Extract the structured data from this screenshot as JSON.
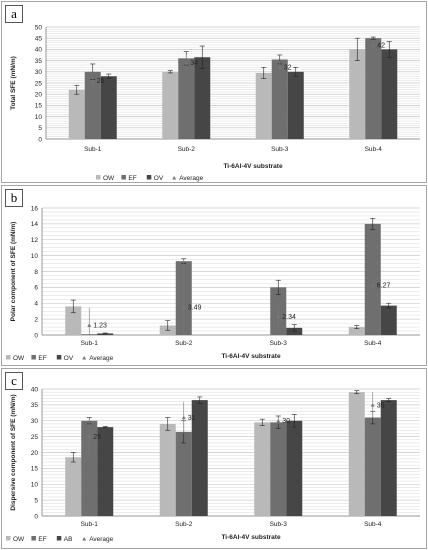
{
  "chart_data": [
    {
      "type": "bar",
      "panel_label": "a",
      "categories": [
        "Sub-1",
        "Sub-2",
        "Sub-3",
        "Sub-4"
      ],
      "series": [
        {
          "name": "OW",
          "color": "#b9b9b9",
          "values": [
            22,
            30,
            29.5,
            40
          ],
          "errors": [
            2,
            0.5,
            2.5,
            5
          ]
        },
        {
          "name": "EF",
          "color": "#6f6f6f",
          "values": [
            30,
            36,
            35.5,
            45
          ],
          "errors": [
            3.5,
            3,
            2,
            0.5
          ]
        },
        {
          "name": "OV",
          "color": "#464646",
          "values": [
            28,
            36.5,
            30,
            40
          ],
          "errors": [
            1,
            5,
            2,
            3.5
          ]
        },
        {
          "name": "Average",
          "type": "marker",
          "values": [
            26,
            34,
            32,
            42
          ],
          "errors": [
            4,
            3.5,
            3,
            2.5
          ]
        }
      ],
      "average_labels": [
        "26",
        "34",
        "32",
        "42"
      ],
      "ylabel": "Total SFE  (mN/m)",
      "xlabel": "Ti-6Al-4V  substrate",
      "ylim": [
        0,
        50
      ],
      "yticks": [
        0,
        5,
        10,
        15,
        20,
        25,
        30,
        35,
        40,
        45,
        50
      ],
      "grid": true,
      "legend": "bottom"
    },
    {
      "type": "bar",
      "panel_label": "b",
      "categories": [
        "Sub-1",
        "Sub-2",
        "Sub-3",
        "Sub-4"
      ],
      "series": [
        {
          "name": "OW",
          "color": "#b9b9b9",
          "values": [
            3.6,
            1.2,
            0,
            1
          ],
          "errors": [
            0.8,
            0.6,
            0,
            0.2
          ]
        },
        {
          "name": "EF",
          "color": "#6f6f6f",
          "values": [
            0.1,
            9.3,
            6,
            14
          ],
          "errors": [
            0,
            0.3,
            0.9,
            0.7
          ]
        },
        {
          "name": "OV",
          "color": "#464646",
          "values": [
            0.2,
            0,
            0.9,
            3.7
          ],
          "errors": [
            0.05,
            0,
            0.4,
            0.3
          ]
        },
        {
          "name": "Average",
          "type": "marker",
          "values": [
            1.23,
            3.49,
            2.34,
            6.27
          ],
          "errors": [
            2.2,
            6,
            1.5,
            0.3
          ]
        }
      ],
      "average_labels": [
        "1.23",
        "3.49",
        "2.34",
        "6.27"
      ],
      "ylabel": "Polar component of SFE  (mN/m)",
      "xlabel": "Ti-6Al-4V substrate",
      "ylim": [
        0,
        16
      ],
      "yticks": [
        0,
        2,
        4,
        6,
        8,
        10,
        12,
        14,
        16
      ],
      "grid": true,
      "legend": "bottom-left"
    },
    {
      "type": "bar",
      "panel_label": "c",
      "categories": [
        "Sub-1",
        "Sub-2",
        "Sub-3",
        "Sub-4"
      ],
      "series": [
        {
          "name": "OW",
          "color": "#b9b9b9",
          "values": [
            18.5,
            29,
            29.5,
            39
          ],
          "errors": [
            1.5,
            2,
            1,
            0.5
          ]
        },
        {
          "name": "EF",
          "color": "#6f6f6f",
          "values": [
            30,
            26.5,
            29.5,
            31
          ],
          "errors": [
            1,
            3.5,
            2,
            2
          ]
        },
        {
          "name": "AB",
          "color": "#464646",
          "values": [
            28,
            36.5,
            30,
            36.5
          ],
          "errors": [
            0.2,
            1,
            2,
            0.5
          ]
        },
        {
          "name": "Average",
          "type": "marker",
          "values": [
            25,
            31,
            30,
            35
          ],
          "errors": [
            5.5,
            5,
            1,
            4
          ]
        }
      ],
      "average_labels": [
        "25",
        "31",
        "30",
        "35"
      ],
      "ylabel": "Dispersive component of SFE  (mN/m)",
      "xlabel": "Ti-6Al-4V  substrate",
      "ylim": [
        0,
        40
      ],
      "yticks": [
        0,
        5,
        10,
        15,
        20,
        25,
        30,
        35,
        40
      ],
      "grid": true,
      "legend": "bottom-left"
    }
  ]
}
